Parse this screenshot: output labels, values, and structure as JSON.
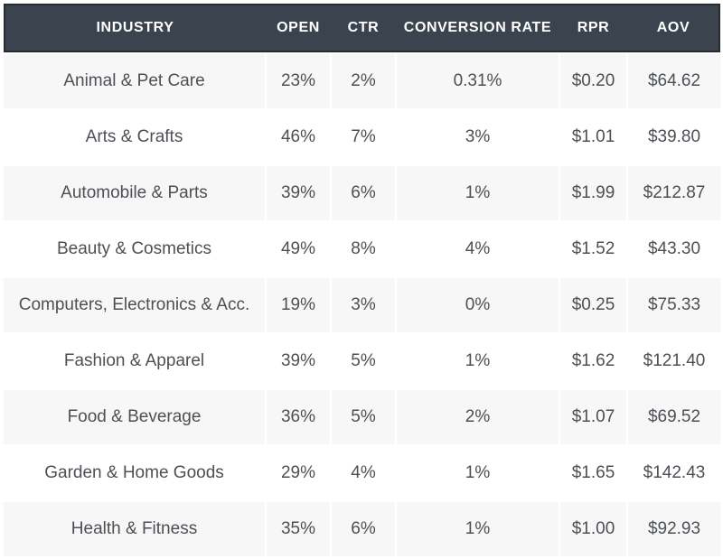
{
  "colors": {
    "header_bg": "#3b444e",
    "header_border": "#262b31",
    "header_text": "#ffffff",
    "row_shaded_bg": "#f7f7f7",
    "row_plain_bg": "#ffffff",
    "body_text": "#4c5055"
  },
  "table": {
    "columns": [
      "INDUSTRY",
      "OPEN",
      "CTR",
      "CONVERSION RATE",
      "RPR",
      "AOV"
    ],
    "rows": [
      {
        "industry": "Animal & Pet Care",
        "open": "23%",
        "ctr": "2%",
        "conversion": "0.31%",
        "rpr": "$0.20",
        "aov": "$64.62"
      },
      {
        "industry": "Arts & Crafts",
        "open": "46%",
        "ctr": "7%",
        "conversion": "3%",
        "rpr": "$1.01",
        "aov": "$39.80"
      },
      {
        "industry": "Automobile & Parts",
        "open": "39%",
        "ctr": "6%",
        "conversion": "1%",
        "rpr": "$1.99",
        "aov": "$212.87"
      },
      {
        "industry": "Beauty & Cosmetics",
        "open": "49%",
        "ctr": "8%",
        "conversion": "4%",
        "rpr": "$1.52",
        "aov": "$43.30"
      },
      {
        "industry": "Computers, Electronics & Acc.",
        "open": "19%",
        "ctr": "3%",
        "conversion": "0%",
        "rpr": "$0.25",
        "aov": "$75.33"
      },
      {
        "industry": "Fashion & Apparel",
        "open": "39%",
        "ctr": "5%",
        "conversion": "1%",
        "rpr": "$1.62",
        "aov": "$121.40"
      },
      {
        "industry": "Food & Beverage",
        "open": "36%",
        "ctr": "5%",
        "conversion": "2%",
        "rpr": "$1.07",
        "aov": "$69.52"
      },
      {
        "industry": "Garden & Home Goods",
        "open": "29%",
        "ctr": "4%",
        "conversion": "1%",
        "rpr": "$1.65",
        "aov": "$142.43"
      },
      {
        "industry": "Health & Fitness",
        "open": "35%",
        "ctr": "6%",
        "conversion": "1%",
        "rpr": "$1.00",
        "aov": "$92.93"
      }
    ]
  },
  "chart_data": {
    "type": "table",
    "columns": [
      "INDUSTRY",
      "OPEN",
      "CTR",
      "CONVERSION RATE",
      "RPR",
      "AOV"
    ],
    "rows": [
      [
        "Animal & Pet Care",
        "23%",
        "2%",
        "0.31%",
        "$0.20",
        "$64.62"
      ],
      [
        "Arts & Crafts",
        "46%",
        "7%",
        "3%",
        "$1.01",
        "$39.80"
      ],
      [
        "Automobile & Parts",
        "39%",
        "6%",
        "1%",
        "$1.99",
        "$212.87"
      ],
      [
        "Beauty & Cosmetics",
        "49%",
        "8%",
        "4%",
        "$1.52",
        "$43.30"
      ],
      [
        "Computers, Electronics & Acc.",
        "19%",
        "3%",
        "0%",
        "$0.25",
        "$75.33"
      ],
      [
        "Fashion & Apparel",
        "39%",
        "5%",
        "1%",
        "$1.62",
        "$121.40"
      ],
      [
        "Food & Beverage",
        "36%",
        "5%",
        "2%",
        "$1.07",
        "$69.52"
      ],
      [
        "Garden & Home Goods",
        "29%",
        "4%",
        "1%",
        "$1.65",
        "$142.43"
      ],
      [
        "Health & Fitness",
        "35%",
        "6%",
        "1%",
        "$1.00",
        "$92.93"
      ]
    ],
    "notes": {
      "open_numeric": [
        23,
        46,
        39,
        49,
        19,
        39,
        36,
        29,
        35
      ],
      "ctr_numeric": [
        2,
        7,
        6,
        8,
        3,
        5,
        5,
        4,
        6
      ],
      "conversion_numeric": [
        0.31,
        3,
        1,
        4,
        0,
        1,
        2,
        1,
        1
      ],
      "rpr_numeric": [
        0.2,
        1.01,
        1.99,
        1.52,
        0.25,
        1.62,
        1.07,
        1.65,
        1.0
      ],
      "aov_numeric": [
        64.62,
        39.8,
        212.87,
        43.3,
        75.33,
        121.4,
        69.52,
        142.43,
        92.93
      ]
    }
  }
}
